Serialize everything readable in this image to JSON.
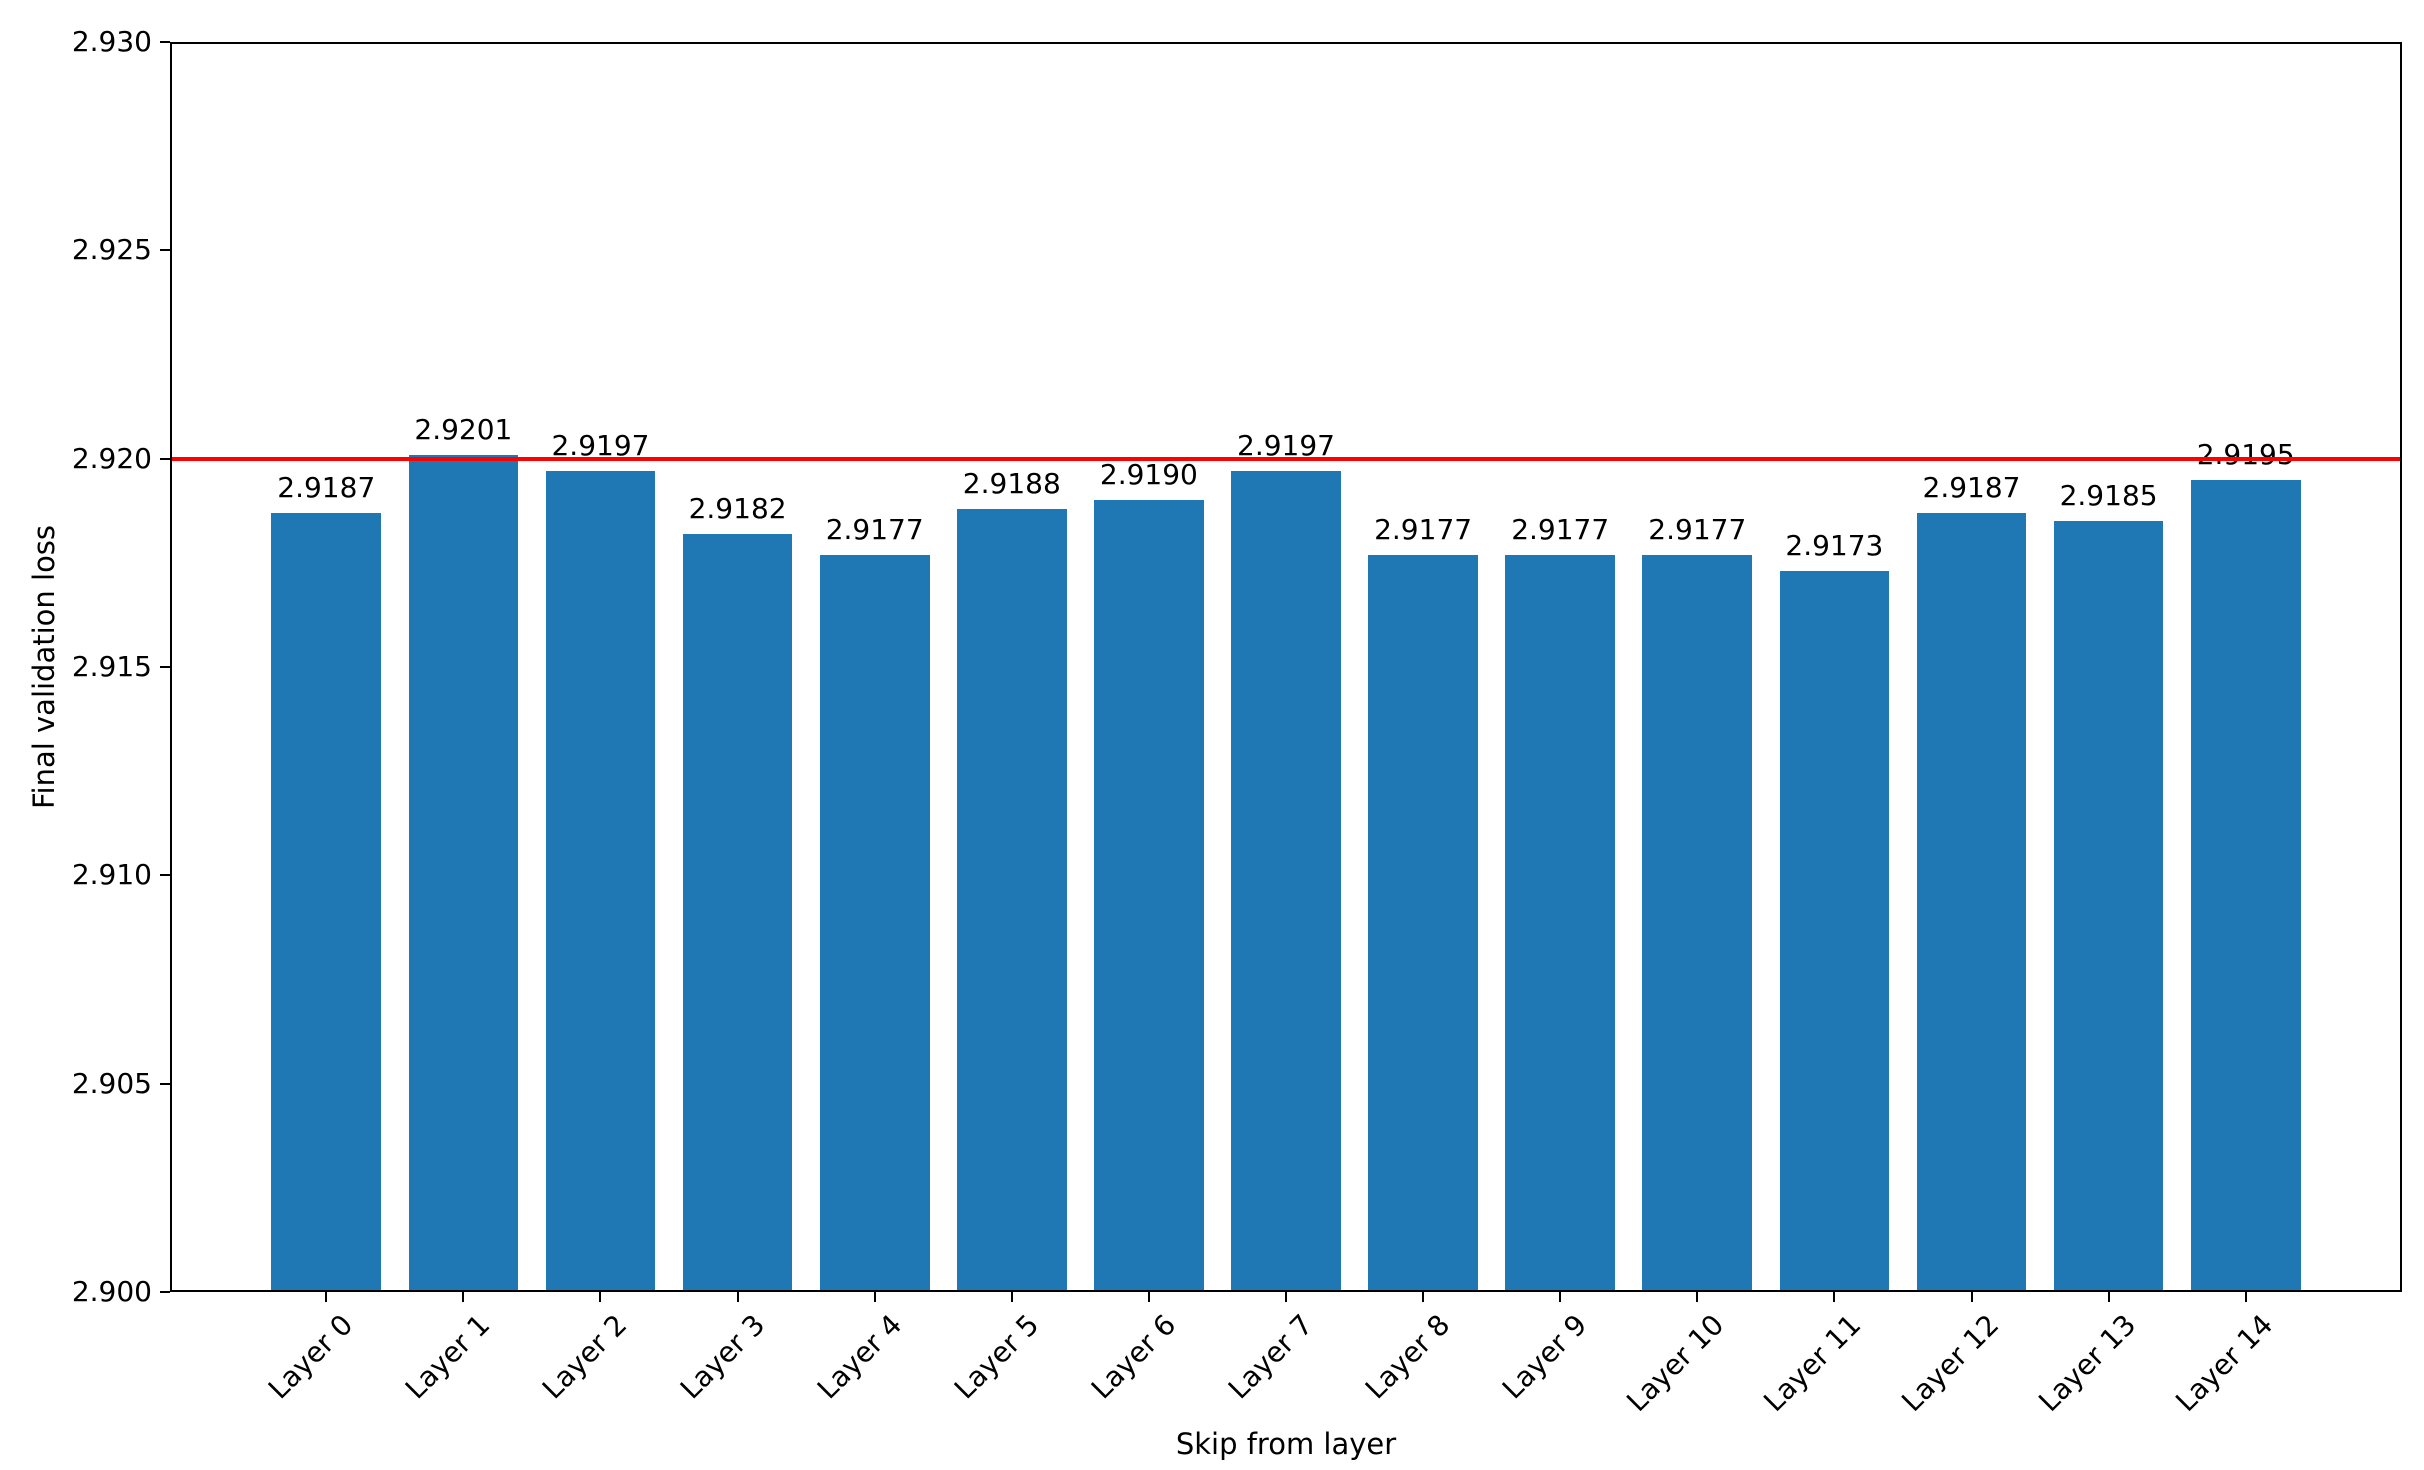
{
  "figure": {
    "background": "#ffffff",
    "text_color": "#000000"
  },
  "chart_data": {
    "type": "bar",
    "title": "",
    "xlabel": "Skip from layer",
    "ylabel": "Final validation loss",
    "categories": [
      "Layer 0",
      "Layer 1",
      "Layer 2",
      "Layer 3",
      "Layer 4",
      "Layer 5",
      "Layer 6",
      "Layer 7",
      "Layer 8",
      "Layer 9",
      "Layer 10",
      "Layer 11",
      "Layer 12",
      "Layer 13",
      "Layer 14"
    ],
    "values": [
      2.9187,
      2.9201,
      2.9197,
      2.9182,
      2.9177,
      2.9188,
      2.919,
      2.9197,
      2.9177,
      2.9177,
      2.9177,
      2.9173,
      2.9187,
      2.9185,
      2.9195
    ],
    "value_label_decimals": 4,
    "bar_color": "#1f77b4",
    "bar_width_units": 0.8,
    "baseline_line": {
      "value": 2.92,
      "color": "#ff0000"
    },
    "ylim": [
      2.9,
      2.93
    ],
    "ytick_values": [
      2.9,
      2.905,
      2.91,
      2.915,
      2.92,
      2.925,
      2.93
    ],
    "ytick_decimals": 3,
    "xlim": [
      -1.14,
      15.14
    ],
    "xtick_rotation_deg": 45,
    "grid": false,
    "legend": null
  }
}
